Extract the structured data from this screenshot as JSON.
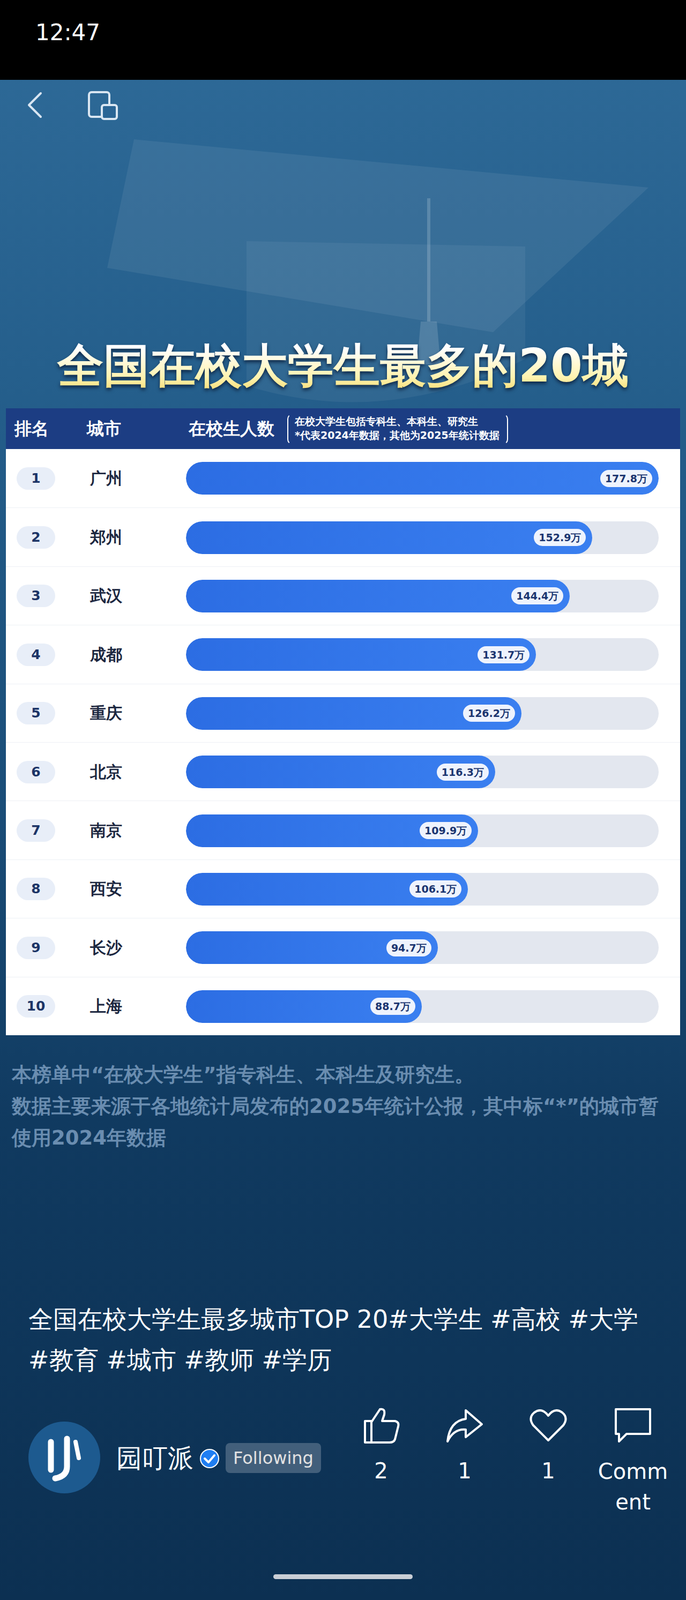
{
  "chart_data": {
    "type": "bar",
    "orientation": "horizontal",
    "title": "全国在校大学生最多的20城",
    "rank_header": "排名",
    "category_header": "城市",
    "value_header": "在校生人数",
    "header_notes": [
      "在校大学生包括专科生、本科生、研究生",
      "*代表2024年数据，其他为2025年统计数据"
    ],
    "ranks": [
      1,
      2,
      3,
      4,
      5,
      6,
      7,
      8,
      9,
      10
    ],
    "categories": [
      "广州",
      "郑州",
      "武汉",
      "成都",
      "重庆",
      "北京",
      "南京",
      "西安",
      "长沙",
      "上海"
    ],
    "values": [
      177.8,
      152.9,
      144.4,
      131.7,
      126.2,
      116.3,
      109.9,
      106.1,
      94.7,
      88.7
    ],
    "value_labels": [
      "177.8万",
      "152.9万",
      "144.4万",
      "131.7万",
      "126.2万",
      "116.3万",
      "109.9万",
      "106.1万",
      "94.7万",
      "88.7万"
    ],
    "xlim": [
      0,
      177.8
    ],
    "color": "#2c6de3",
    "data_labels": true,
    "tick_labels": false,
    "grid": false,
    "footnotes": [
      "本榜单中“在校大学生”指专科生、本科生及研究生。",
      "数据主要来源于各地统计局发布的2025年统计公报，其中标“*”的城市暂使用2024年数据"
    ]
  },
  "screen": {
    "time": "12:47",
    "caption": "全国在校大学生最多城市TOP 20#大学生 #高校 #大学 #教育 #城市 #教师 #学历",
    "account": "园叮派",
    "follow": "Following",
    "likes": 2,
    "shares": 1,
    "favorites": 1,
    "comment_label": "Comment"
  }
}
